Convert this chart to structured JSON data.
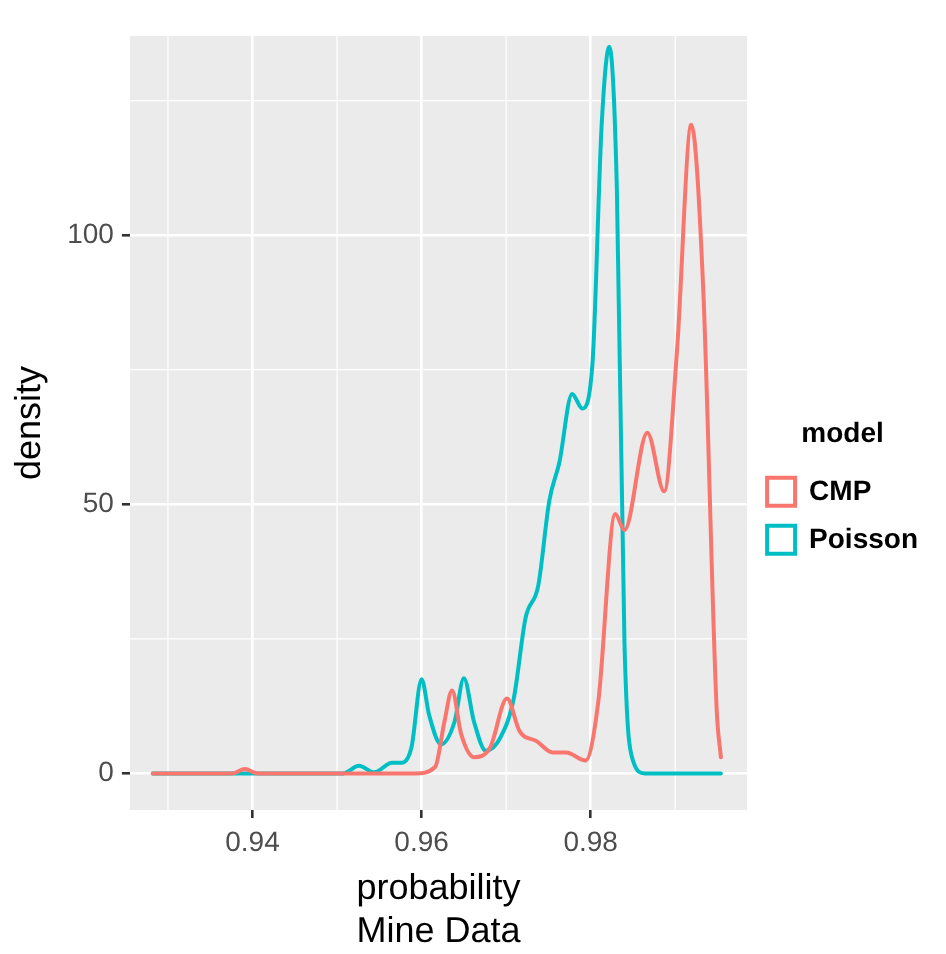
{
  "chart_data": {
    "type": "line",
    "xlabel": "probability",
    "ylabel": "density",
    "legend_title": "model",
    "annotations": [
      "Mine Data"
    ],
    "xlim": [
      0.9255,
      0.9985
    ],
    "xticks": [
      0.94,
      0.96,
      0.98
    ],
    "ylim": [
      -6.8,
      137
    ],
    "yticks": [
      0,
      50,
      100
    ],
    "grid": true,
    "legend": "right",
    "marker": "none",
    "line_style": "solid",
    "series": [
      {
        "name": "CMP",
        "color": "#f8766d",
        "x": [
          0.9282,
          0.9376,
          0.9391,
          0.9406,
          0.9592,
          0.9616,
          0.9627,
          0.9636,
          0.9647,
          0.9662,
          0.9681,
          0.9701,
          0.9716,
          0.9736,
          0.9755,
          0.9771,
          0.9794,
          0.9809,
          0.9829,
          0.984,
          0.9867,
          0.9887,
          0.9902,
          0.9919,
          0.9933,
          0.9949,
          0.9954
        ],
        "values": [
          0,
          0,
          0.8,
          0,
          0,
          1.2,
          9.6,
          15.4,
          7.2,
          3,
          4.8,
          13.9,
          7.8,
          6,
          3.9,
          3.9,
          2.4,
          13.3,
          48.2,
          45.2,
          63.3,
          52.4,
          78.3,
          120.5,
          90.4,
          12,
          3
        ]
      },
      {
        "name": "Poisson",
        "color": "#00bfc4",
        "x": [
          0.9282,
          0.9507,
          0.9526,
          0.9544,
          0.9565,
          0.9577,
          0.9588,
          0.96,
          0.9609,
          0.9623,
          0.9639,
          0.965,
          0.9662,
          0.9676,
          0.9693,
          0.9709,
          0.9723,
          0.9738,
          0.9751,
          0.9763,
          0.9778,
          0.979,
          0.9802,
          0.9813,
          0.9822,
          0.9831,
          0.984,
          0.985,
          0.9864,
          0.9954
        ],
        "values": [
          0,
          0,
          1.4,
          0.2,
          2,
          2,
          4.8,
          17.5,
          10.8,
          5.4,
          9.6,
          17.7,
          9.6,
          4.2,
          6.6,
          13.9,
          28.9,
          34.9,
          50.6,
          57.8,
          70.5,
          67.8,
          75.9,
          120.5,
          135,
          108.4,
          24.1,
          2.4,
          0,
          0
        ]
      }
    ]
  }
}
